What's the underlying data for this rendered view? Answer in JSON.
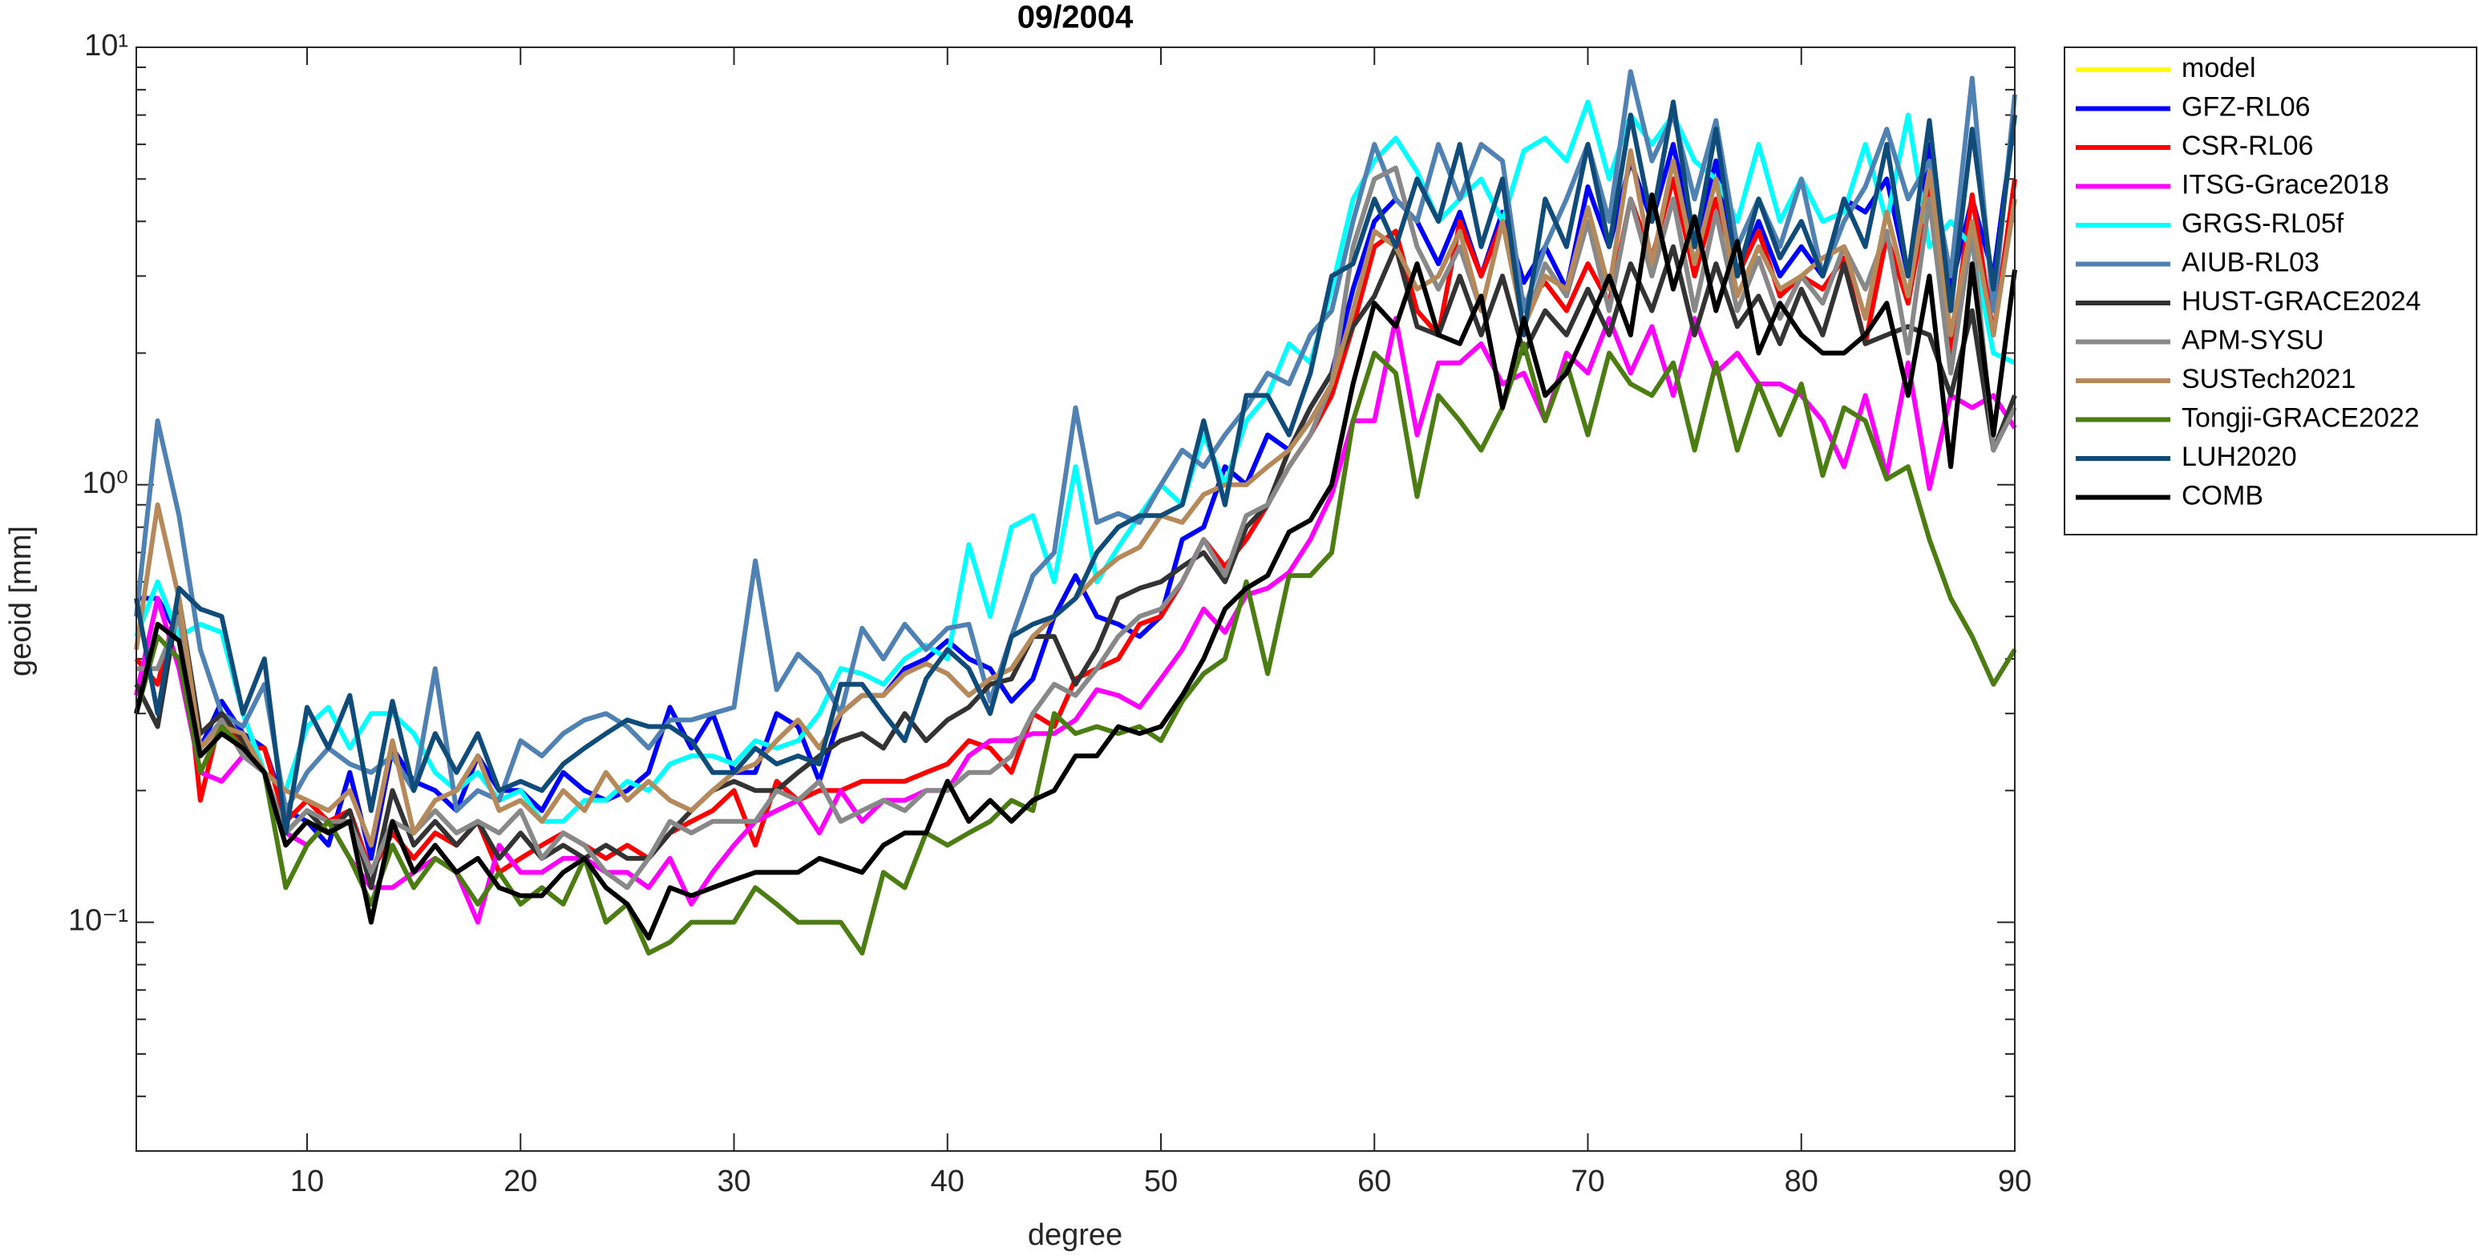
{
  "chart_data": {
    "type": "line",
    "title": "09/2004",
    "xlabel": "degree",
    "ylabel": "geoid [mm]",
    "yscale": "log",
    "xlim": [
      2,
      90
    ],
    "ylim": [
      0.03,
      10
    ],
    "xticks": [
      10,
      20,
      30,
      40,
      50,
      60,
      70,
      80,
      90
    ],
    "yticks": [
      {
        "value": 0.1,
        "label": "10⁻¹"
      },
      {
        "value": 1,
        "label": "10⁰"
      },
      {
        "value": 10,
        "label": "10¹"
      }
    ],
    "yminorticks": [
      0.04,
      0.05,
      0.06,
      0.07,
      0.08,
      0.09,
      0.2,
      0.3,
      0.4,
      0.5,
      0.6,
      0.7,
      0.8,
      0.9,
      2,
      3,
      4,
      5,
      6,
      7,
      8,
      9
    ],
    "legend": "outside-top-right",
    "x": [
      2,
      3,
      4,
      5,
      6,
      7,
      8,
      9,
      10,
      11,
      12,
      13,
      14,
      15,
      16,
      17,
      18,
      19,
      20,
      21,
      22,
      23,
      24,
      25,
      26,
      27,
      28,
      29,
      30,
      31,
      32,
      33,
      34,
      35,
      36,
      37,
      38,
      39,
      40,
      41,
      42,
      43,
      44,
      45,
      46,
      47,
      48,
      49,
      50,
      51,
      52,
      53,
      54,
      55,
      56,
      57,
      58,
      59,
      60,
      61,
      62,
      63,
      64,
      65,
      66,
      67,
      68,
      69,
      70,
      71,
      72,
      73,
      74,
      75,
      76,
      77,
      78,
      79,
      80,
      81,
      82,
      83,
      84,
      85,
      86,
      87,
      88,
      89,
      90
    ],
    "series": [
      {
        "name": "model",
        "color": "#ffff00",
        "values": [
          null,
          null,
          null,
          null,
          null,
          null,
          null,
          null,
          null,
          null,
          null,
          null,
          null,
          null,
          null,
          null,
          null,
          null,
          null,
          null,
          null,
          null,
          null,
          null,
          null,
          null,
          null,
          null,
          null,
          null,
          null,
          null,
          null,
          null,
          null,
          null,
          null,
          null,
          null,
          null,
          null,
          null,
          null,
          null,
          null,
          null,
          null,
          null,
          null,
          null,
          null,
          null,
          null,
          null,
          null,
          null,
          null,
          null,
          null,
          null,
          null,
          null,
          null,
          null,
          null,
          null,
          null,
          null,
          null,
          null,
          null,
          null,
          null,
          null,
          null,
          null,
          null,
          null,
          null,
          null,
          null,
          null,
          null,
          null,
          null,
          null,
          null,
          null,
          null
        ]
      },
      {
        "name": "GFZ-RL06",
        "color": "#0000ff",
        "values": [
          0.55,
          0.55,
          0.45,
          0.25,
          0.32,
          0.27,
          0.25,
          0.18,
          0.17,
          0.15,
          0.22,
          0.14,
          0.25,
          0.21,
          0.2,
          0.18,
          0.24,
          0.2,
          0.2,
          0.18,
          0.22,
          0.2,
          0.19,
          0.2,
          0.22,
          0.31,
          0.25,
          0.3,
          0.22,
          0.22,
          0.3,
          0.28,
          0.21,
          0.3,
          0.33,
          0.33,
          0.38,
          0.4,
          0.44,
          0.4,
          0.38,
          0.32,
          0.36,
          0.5,
          0.62,
          0.5,
          0.48,
          0.45,
          0.5,
          0.75,
          0.8,
          1.1,
          1.0,
          1.3,
          1.2,
          1.5,
          1.8,
          2.8,
          4.0,
          4.5,
          4.0,
          3.2,
          4.2,
          3.0,
          4.2,
          2.9,
          3.5,
          2.8,
          4.8,
          3.5,
          5.5,
          4.0,
          6.0,
          3.5,
          5.5,
          3.0,
          4.0,
          3.0,
          3.5,
          3.0,
          4.5,
          4.2,
          5.0,
          3.0,
          6.0,
          2.8,
          4.5,
          3.0,
          7.0
        ]
      },
      {
        "name": "CSR-RL06",
        "color": "#ff0000",
        "values": [
          0.4,
          0.35,
          0.55,
          0.19,
          0.3,
          0.25,
          0.25,
          0.17,
          0.19,
          0.17,
          0.18,
          0.13,
          0.16,
          0.14,
          0.16,
          0.15,
          0.17,
          0.13,
          0.14,
          0.15,
          0.16,
          0.15,
          0.14,
          0.15,
          0.14,
          0.16,
          0.17,
          0.18,
          0.2,
          0.15,
          0.21,
          0.19,
          0.2,
          0.2,
          0.21,
          0.21,
          0.21,
          0.22,
          0.23,
          0.26,
          0.25,
          0.22,
          0.3,
          0.28,
          0.36,
          0.38,
          0.4,
          0.48,
          0.5,
          0.6,
          0.75,
          0.65,
          0.75,
          0.9,
          1.1,
          1.3,
          1.6,
          2.3,
          3.5,
          3.8,
          2.5,
          2.2,
          4.0,
          3.0,
          4.0,
          2.6,
          2.9,
          2.5,
          3.2,
          2.6,
          4.5,
          3.3,
          5.0,
          3.0,
          4.5,
          3.0,
          3.8,
          2.7,
          3.0,
          2.8,
          3.3,
          2.1,
          3.7,
          2.6,
          4.8,
          2.0,
          4.6,
          2.2,
          5.0
        ]
      },
      {
        "name": "ITSG-Grace2018",
        "color": "#ff00ff",
        "values": [
          0.33,
          0.55,
          0.38,
          0.22,
          0.21,
          0.24,
          0.22,
          0.16,
          0.15,
          0.17,
          0.14,
          0.12,
          0.12,
          0.13,
          0.14,
          0.13,
          0.1,
          0.15,
          0.13,
          0.13,
          0.14,
          0.14,
          0.13,
          0.13,
          0.12,
          0.14,
          0.11,
          0.13,
          0.15,
          0.17,
          0.18,
          0.19,
          0.16,
          0.2,
          0.17,
          0.19,
          0.19,
          0.2,
          0.2,
          0.24,
          0.26,
          0.26,
          0.27,
          0.27,
          0.29,
          0.34,
          0.33,
          0.31,
          0.36,
          0.42,
          0.52,
          0.46,
          0.56,
          0.58,
          0.63,
          0.75,
          0.95,
          1.4,
          1.4,
          2.4,
          1.3,
          1.9,
          1.9,
          2.1,
          1.7,
          1.8,
          1.4,
          2.0,
          1.8,
          2.4,
          1.8,
          2.3,
          1.6,
          2.4,
          1.8,
          2.0,
          1.7,
          1.7,
          1.6,
          1.4,
          1.1,
          1.6,
          1.05,
          1.9,
          0.98,
          1.6,
          1.5,
          1.6,
          1.35
        ]
      },
      {
        "name": "GRGS-RL05f",
        "color": "#00ffff",
        "values": [
          0.45,
          0.6,
          0.45,
          0.48,
          0.46,
          0.3,
          0.22,
          0.2,
          0.28,
          0.31,
          0.25,
          0.3,
          0.3,
          0.27,
          0.22,
          0.2,
          0.22,
          0.19,
          0.2,
          0.17,
          0.17,
          0.19,
          0.19,
          0.21,
          0.2,
          0.23,
          0.24,
          0.24,
          0.23,
          0.26,
          0.25,
          0.26,
          0.3,
          0.38,
          0.37,
          0.35,
          0.4,
          0.43,
          0.4,
          0.73,
          0.5,
          0.8,
          0.85,
          0.6,
          1.1,
          0.6,
          0.72,
          0.85,
          1.0,
          0.9,
          1.3,
          1.0,
          1.4,
          1.6,
          2.1,
          1.9,
          2.8,
          4.5,
          5.5,
          6.2,
          5.2,
          4.0,
          4.5,
          5.0,
          4.0,
          5.8,
          6.2,
          5.5,
          7.5,
          5.0,
          7.0,
          6.0,
          7.0,
          5.5,
          5.0,
          4.0,
          6.0,
          4.0,
          5.0,
          4.0,
          4.2,
          6.0,
          4.0,
          7.0,
          3.5,
          4.0,
          3.5,
          2.0,
          1.9
        ]
      },
      {
        "name": "AIUB-RL03",
        "color": "#4f81b3",
        "values": [
          0.5,
          1.4,
          0.85,
          0.42,
          0.3,
          0.28,
          0.35,
          0.18,
          0.22,
          0.25,
          0.23,
          0.22,
          0.24,
          0.2,
          0.38,
          0.18,
          0.2,
          0.19,
          0.26,
          0.24,
          0.27,
          0.29,
          0.3,
          0.28,
          0.25,
          0.29,
          0.29,
          0.3,
          0.31,
          0.67,
          0.34,
          0.41,
          0.37,
          0.3,
          0.47,
          0.4,
          0.48,
          0.42,
          0.47,
          0.48,
          0.32,
          0.45,
          0.62,
          0.7,
          1.5,
          0.82,
          0.86,
          0.82,
          1.0,
          1.2,
          1.1,
          1.3,
          1.5,
          1.8,
          1.7,
          2.2,
          2.5,
          4.0,
          6.0,
          4.5,
          4.0,
          6.0,
          4.5,
          6.0,
          5.5,
          2.5,
          3.5,
          4.5,
          6.0,
          4.0,
          8.8,
          5.5,
          7.0,
          4.5,
          6.8,
          3.5,
          4.5,
          3.5,
          5.0,
          3.0,
          4.0,
          4.8,
          6.5,
          4.5,
          5.5,
          3.0,
          8.5,
          2.5,
          7.8
        ]
      },
      {
        "name": "HUST-GRACE2024",
        "color": "#333333",
        "values": [
          0.35,
          0.28,
          0.55,
          0.27,
          0.3,
          0.26,
          0.22,
          0.16,
          0.18,
          0.16,
          0.18,
          0.12,
          0.2,
          0.15,
          0.17,
          0.15,
          0.17,
          0.14,
          0.16,
          0.14,
          0.15,
          0.14,
          0.15,
          0.14,
          0.14,
          0.16,
          0.18,
          0.2,
          0.21,
          0.2,
          0.2,
          0.22,
          0.24,
          0.26,
          0.27,
          0.25,
          0.3,
          0.26,
          0.29,
          0.31,
          0.35,
          0.36,
          0.45,
          0.45,
          0.35,
          0.42,
          0.55,
          0.58,
          0.6,
          0.65,
          0.7,
          0.6,
          0.8,
          0.9,
          1.2,
          1.5,
          1.8,
          2.3,
          2.7,
          3.5,
          2.3,
          2.2,
          3.0,
          2.2,
          3.0,
          2.0,
          2.5,
          2.2,
          2.8,
          2.2,
          3.2,
          2.5,
          3.5,
          2.2,
          3.2,
          2.3,
          2.7,
          2.1,
          2.8,
          2.2,
          3.2,
          2.1,
          2.2,
          2.3,
          2.2,
          1.6,
          2.5,
          1.2,
          1.6
        ]
      },
      {
        "name": "APM-SYSU",
        "color": "#888888",
        "values": [
          0.38,
          0.38,
          0.5,
          0.25,
          0.29,
          0.24,
          0.22,
          0.16,
          0.18,
          0.17,
          0.17,
          0.13,
          0.17,
          0.16,
          0.18,
          0.16,
          0.17,
          0.16,
          0.18,
          0.14,
          0.16,
          0.15,
          0.13,
          0.12,
          0.14,
          0.17,
          0.16,
          0.17,
          0.17,
          0.17,
          0.2,
          0.19,
          0.21,
          0.17,
          0.18,
          0.19,
          0.18,
          0.2,
          0.2,
          0.22,
          0.22,
          0.24,
          0.3,
          0.35,
          0.33,
          0.38,
          0.45,
          0.5,
          0.52,
          0.6,
          0.75,
          0.62,
          0.85,
          0.9,
          1.1,
          1.3,
          1.7,
          3.5,
          5.0,
          5.3,
          3.5,
          2.8,
          3.5,
          2.5,
          4.0,
          2.3,
          3.2,
          2.7,
          4.0,
          2.5,
          4.5,
          3.0,
          4.5,
          2.5,
          4.2,
          2.5,
          3.3,
          2.4,
          3.0,
          2.6,
          3.5,
          2.8,
          3.8,
          2.0,
          4.5,
          1.8,
          3.8,
          1.2,
          1.5
        ]
      },
      {
        "name": "SUSTech2021",
        "color": "#b5895a",
        "values": [
          0.42,
          0.9,
          0.55,
          0.25,
          0.28,
          0.27,
          0.22,
          0.2,
          0.19,
          0.18,
          0.2,
          0.15,
          0.26,
          0.16,
          0.19,
          0.2,
          0.24,
          0.18,
          0.19,
          0.17,
          0.2,
          0.18,
          0.22,
          0.19,
          0.21,
          0.19,
          0.18,
          0.2,
          0.22,
          0.23,
          0.26,
          0.29,
          0.25,
          0.3,
          0.33,
          0.33,
          0.37,
          0.39,
          0.37,
          0.33,
          0.36,
          0.38,
          0.45,
          0.5,
          0.55,
          0.62,
          0.68,
          0.72,
          0.85,
          0.82,
          0.95,
          1.0,
          1.0,
          1.1,
          1.2,
          1.4,
          1.7,
          2.5,
          3.8,
          3.5,
          2.8,
          3.0,
          3.8,
          2.5,
          4.0,
          2.3,
          3.0,
          2.8,
          4.3,
          2.8,
          5.8,
          3.2,
          5.5,
          3.2,
          5.0,
          2.7,
          3.5,
          2.8,
          3.0,
          3.3,
          3.5,
          2.4,
          4.2,
          2.7,
          5.2,
          2.2,
          4.0,
          2.2,
          4.5
        ]
      },
      {
        "name": "Tongji-GRACE2022",
        "color": "#4b7d13",
        "values": [
          0.3,
          0.45,
          0.4,
          0.22,
          0.28,
          0.25,
          0.22,
          0.12,
          0.15,
          0.17,
          0.14,
          0.11,
          0.15,
          0.12,
          0.14,
          0.13,
          0.11,
          0.13,
          0.11,
          0.12,
          0.11,
          0.14,
          0.1,
          0.11,
          0.085,
          0.09,
          0.1,
          0.1,
          0.1,
          0.12,
          0.11,
          0.1,
          0.1,
          0.1,
          0.085,
          0.13,
          0.12,
          0.16,
          0.15,
          0.16,
          0.17,
          0.19,
          0.18,
          0.3,
          0.27,
          0.28,
          0.27,
          0.28,
          0.26,
          0.32,
          0.37,
          0.4,
          0.6,
          0.37,
          0.62,
          0.62,
          0.7,
          1.4,
          2.0,
          1.8,
          0.94,
          1.6,
          1.4,
          1.2,
          1.5,
          2.1,
          1.4,
          1.9,
          1.3,
          2.0,
          1.7,
          1.6,
          1.9,
          1.2,
          1.9,
          1.2,
          1.7,
          1.3,
          1.7,
          1.05,
          1.5,
          1.4,
          1.03,
          1.1,
          0.75,
          0.55,
          0.45,
          0.35,
          0.42
        ]
      },
      {
        "name": "LUH2020",
        "color": "#0f4c7a",
        "values": [
          0.55,
          0.3,
          0.58,
          0.52,
          0.5,
          0.3,
          0.4,
          0.16,
          0.31,
          0.25,
          0.33,
          0.18,
          0.32,
          0.2,
          0.27,
          0.22,
          0.27,
          0.2,
          0.21,
          0.2,
          0.23,
          0.25,
          0.27,
          0.29,
          0.28,
          0.28,
          0.26,
          0.22,
          0.22,
          0.25,
          0.23,
          0.24,
          0.23,
          0.35,
          0.35,
          0.3,
          0.26,
          0.36,
          0.42,
          0.38,
          0.3,
          0.45,
          0.48,
          0.5,
          0.55,
          0.7,
          0.8,
          0.85,
          0.85,
          0.9,
          1.4,
          0.9,
          1.6,
          1.6,
          1.3,
          1.8,
          3.0,
          3.2,
          4.5,
          3.5,
          5.0,
          4.0,
          6.0,
          3.5,
          5.0,
          2.2,
          4.5,
          3.5,
          6.0,
          3.5,
          7.0,
          4.0,
          7.5,
          3.5,
          6.5,
          3.0,
          4.5,
          3.3,
          4.0,
          3.0,
          4.5,
          3.5,
          6.0,
          3.0,
          6.8,
          2.5,
          6.5,
          2.8,
          7.0
        ]
      },
      {
        "name": "COMB",
        "color": "#000000",
        "values": [
          0.3,
          0.48,
          0.44,
          0.24,
          0.27,
          0.25,
          0.22,
          0.15,
          0.17,
          0.16,
          0.17,
          0.1,
          0.17,
          0.13,
          0.15,
          0.13,
          0.14,
          0.12,
          0.115,
          0.115,
          0.13,
          0.14,
          0.12,
          0.11,
          0.092,
          0.12,
          0.115,
          0.12,
          0.125,
          0.13,
          0.13,
          0.13,
          0.14,
          0.135,
          0.13,
          0.15,
          0.16,
          0.16,
          0.21,
          0.17,
          0.19,
          0.17,
          0.19,
          0.2,
          0.24,
          0.24,
          0.28,
          0.27,
          0.28,
          0.33,
          0.4,
          0.52,
          0.58,
          0.62,
          0.78,
          0.83,
          1.0,
          1.7,
          2.6,
          2.3,
          3.2,
          2.2,
          2.1,
          2.7,
          1.5,
          2.4,
          1.6,
          1.8,
          2.3,
          3.0,
          2.2,
          4.6,
          2.8,
          4.1,
          2.5,
          3.6,
          2.0,
          2.6,
          2.2,
          2.0,
          2.0,
          2.2,
          2.6,
          1.6,
          3.0,
          1.1,
          3.2,
          1.3,
          3.1
        ]
      }
    ]
  }
}
